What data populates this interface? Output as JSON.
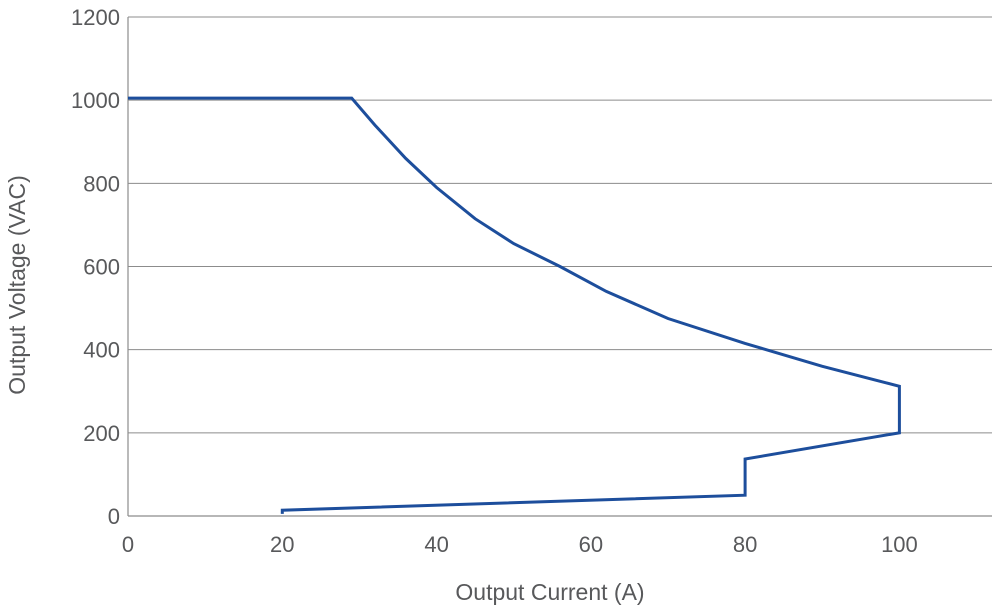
{
  "chart_data": {
    "type": "line",
    "title": "",
    "xlabel": "Output Current (A)",
    "ylabel": "Output Voltage (VAC)",
    "xlim": [
      0,
      112
    ],
    "ylim": [
      0,
      1200
    ],
    "x_ticks": [
      "0",
      "20",
      "40",
      "60",
      "80",
      "100"
    ],
    "y_ticks": [
      "0",
      "200",
      "400",
      "600",
      "800",
      "1000",
      "1200"
    ],
    "grid": "horizontal",
    "series": [
      {
        "color": "#1d4e9c",
        "points": [
          {
            "x": 0,
            "y": 1005
          },
          {
            "x": 29,
            "y": 1005
          },
          {
            "x": 32,
            "y": 940
          },
          {
            "x": 36,
            "y": 860
          },
          {
            "x": 40,
            "y": 790
          },
          {
            "x": 45,
            "y": 715
          },
          {
            "x": 50,
            "y": 655
          },
          {
            "x": 56,
            "y": 600
          },
          {
            "x": 62,
            "y": 540
          },
          {
            "x": 70,
            "y": 475
          },
          {
            "x": 80,
            "y": 415
          },
          {
            "x": 90,
            "y": 360
          },
          {
            "x": 100,
            "y": 312
          },
          {
            "x": 100,
            "y": 200
          },
          {
            "x": 80,
            "y": 137
          },
          {
            "x": 80,
            "y": 50
          },
          {
            "x": 20,
            "y": 14
          },
          {
            "x": 20,
            "y": 5
          }
        ]
      }
    ]
  }
}
